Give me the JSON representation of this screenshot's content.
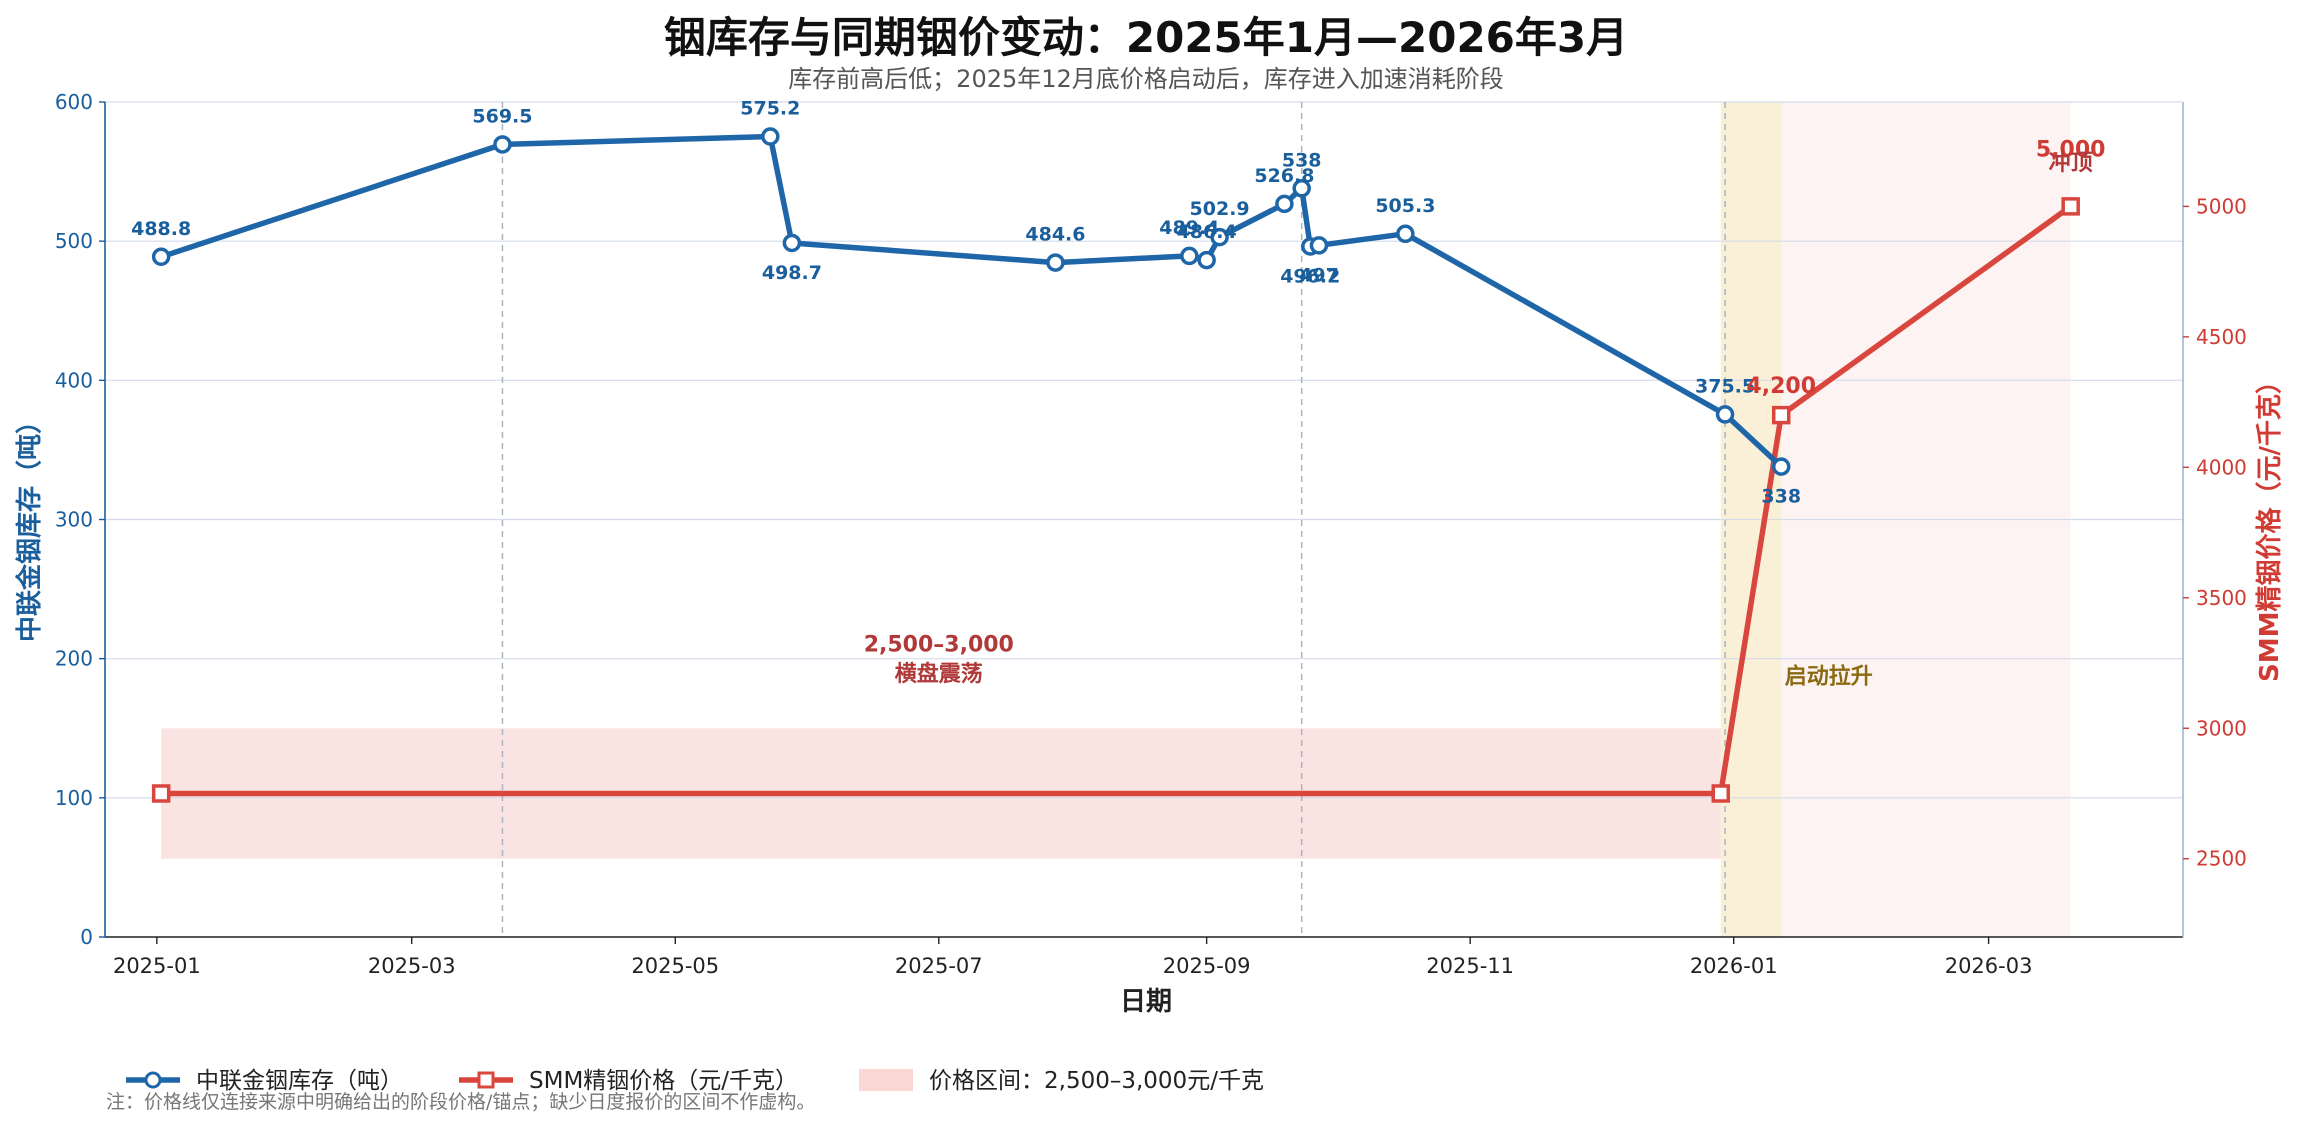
{
  "chart_data": {
    "type": "line",
    "title": "铟库存与同期铟价变动：2025年1月—2026年3月",
    "subtitle": "库存前高后低；2025年12月底价格启动后，库存进入加速消耗阶段",
    "xlabel": "日期",
    "ylabel_left": "中联金铟库存（吨）",
    "ylabel_right": "SMM精铟价格（元/千克）",
    "xlim": [
      "2024-12-20",
      "2026-04-15"
    ],
    "ylim_left": [
      0,
      600
    ],
    "ylim_right": [
      2200,
      5400
    ],
    "x_ticks": [
      "2025-01",
      "2025-03",
      "2025-05",
      "2025-07",
      "2025-09",
      "2025-11",
      "2026-01",
      "2026-03"
    ],
    "y_ticks_left": [
      "0",
      "100",
      "200",
      "300",
      "400",
      "500",
      "600"
    ],
    "y_ticks_right": [
      "2500",
      "3000",
      "3500",
      "4000",
      "4500",
      "5000"
    ],
    "grid": true,
    "legend_position": "bottom-left",
    "series": [
      {
        "name": "中联金铟库存（吨）",
        "axis": "left",
        "color": "#1f66a8",
        "points": [
          {
            "x": "2025-01-02",
            "y": 488.8,
            "label": "488.8"
          },
          {
            "x": "2025-03-22",
            "y": 569.5,
            "label": "569.5"
          },
          {
            "x": "2025-05-23",
            "y": 575.2,
            "label": "575.2"
          },
          {
            "x": "2025-05-28",
            "y": 498.7,
            "label": "498.7"
          },
          {
            "x": "2025-07-28",
            "y": 484.6,
            "label": "484.6"
          },
          {
            "x": "2025-08-28",
            "y": 489.4,
            "label": "489.4"
          },
          {
            "x": "2025-09-01",
            "y": 486.4,
            "label": "486.4"
          },
          {
            "x": "2025-09-04",
            "y": 502.9,
            "label": "502.9"
          },
          {
            "x": "2025-09-19",
            "y": 526.8,
            "label": "526.8"
          },
          {
            "x": "2025-09-23",
            "y": 538,
            "label": "538"
          },
          {
            "x": "2025-09-25",
            "y": 496.2,
            "label": "496.2"
          },
          {
            "x": "2025-09-27",
            "y": 497,
            "label": "497"
          },
          {
            "x": "2025-10-17",
            "y": 505.3,
            "label": "505.3"
          },
          {
            "x": "2025-12-30",
            "y": 375.5,
            "label": "375.5"
          },
          {
            "x": "2026-01-12",
            "y": 338,
            "label": "338"
          }
        ]
      },
      {
        "name": "SMM精铟价格（元/千克）",
        "axis": "right",
        "color": "#d9463e",
        "points": [
          {
            "x": "2025-01-02",
            "y": 2750,
            "label": ""
          },
          {
            "x": "2025-12-29",
            "y": 2750,
            "label": ""
          },
          {
            "x": "2026-01-12",
            "y": 4200,
            "label": "4,200"
          },
          {
            "x": "2026-03-20",
            "y": 5000,
            "label": "5,000"
          }
        ]
      }
    ],
    "price_band": {
      "name": "价格区间：2,500–3,000元/千克",
      "from": "2025-01-02",
      "to": "2025-12-29",
      "low": 2500,
      "high": 3000,
      "color": "#f3b7b3"
    },
    "phases": [
      {
        "from": "2025-12-29",
        "to": "2026-01-12",
        "color": "#f6e3b8",
        "label": "启动拉升"
      },
      {
        "from": "2026-01-12",
        "to": "2026-03-20",
        "color": "#fbe4e2",
        "label": ""
      }
    ],
    "reference_dates": [
      "2025-03-22",
      "2025-09-23",
      "2025-12-30"
    ],
    "annotations": [
      {
        "text": "2,500–3,000",
        "x": "2025-07-01",
        "y_left": 205,
        "color": "red"
      },
      {
        "text": "横盘震荡",
        "x": "2025-07-01",
        "y_left": 184,
        "color": "red"
      },
      {
        "text": "启动拉升",
        "x": "2026-01-23",
        "y_left": 182,
        "color": "gold"
      },
      {
        "text": "冲顶",
        "x": "2026-03-20",
        "y_right": 5140,
        "color": "red"
      }
    ],
    "legend": [
      {
        "label": "中联金铟库存（吨）",
        "kind": "line-circle",
        "color": "#1f66a8"
      },
      {
        "label": "SMM精铟价格（元/千克）",
        "kind": "line-square",
        "color": "#d9463e"
      },
      {
        "label": "价格区间：2,500–3,000元/千克",
        "kind": "patch",
        "color": "#f3b7b3"
      }
    ],
    "footnote": "注：价格线仅连接来源中明确给出的阶段价格/锚点；缺少日度报价的区间不作虚构。"
  }
}
